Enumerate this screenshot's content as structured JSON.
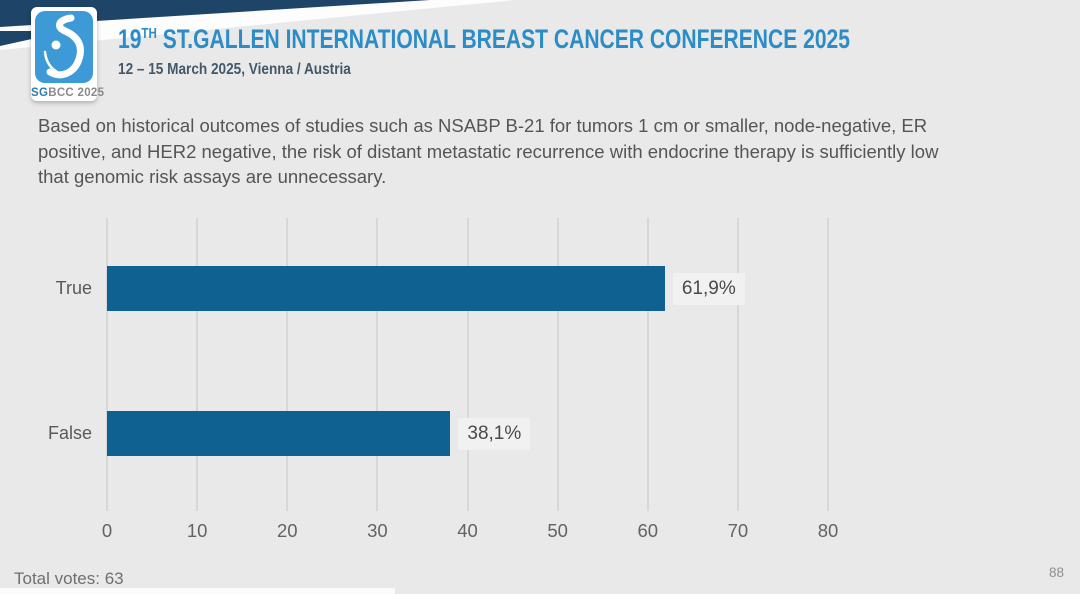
{
  "colors": {
    "background": "#e9e9e9",
    "ribbon_navy": "#1e4467",
    "logo_blue": "#3e9ad6",
    "title_blue": "#2b8cc7",
    "subtitle_slate": "#44576b",
    "bar_blue": "#0e6191",
    "text_gray": "#555555"
  },
  "logo": {
    "sg_bold": "SG",
    "rest": "BCC 2025",
    "glyph": "stylized-breast-icon"
  },
  "header": {
    "title_prefix": "19",
    "title_superscript": "TH",
    "title_rest": " ST.GALLEN INTERNATIONAL BREAST CANCER CONFERENCE 2025",
    "subtitle": "12 – 15 March 2025, Vienna / Austria"
  },
  "question": "Based on historical outcomes of studies such as NSABP B-21 for tumors 1 cm or smaller, node-negative, ER positive, and HER2 negative, the risk of distant metastatic recurrence with endocrine therapy is sufficiently low that genomic risk assays are unnecessary.",
  "chart_data": {
    "type": "bar",
    "orientation": "horizontal",
    "title": "",
    "categories": [
      "True",
      "False"
    ],
    "values": [
      61.9,
      38.1
    ],
    "value_labels": [
      "61,9%",
      "38,1%"
    ],
    "x_ticks": [
      "0",
      "10",
      "20",
      "30",
      "40",
      "50",
      "60",
      "70",
      "80"
    ],
    "xlim": [
      0,
      80
    ],
    "grid": true,
    "legend": "none",
    "bar_color": "#0e6191"
  },
  "footer": {
    "total_votes": "Total votes: 63",
    "page_number": "88"
  }
}
